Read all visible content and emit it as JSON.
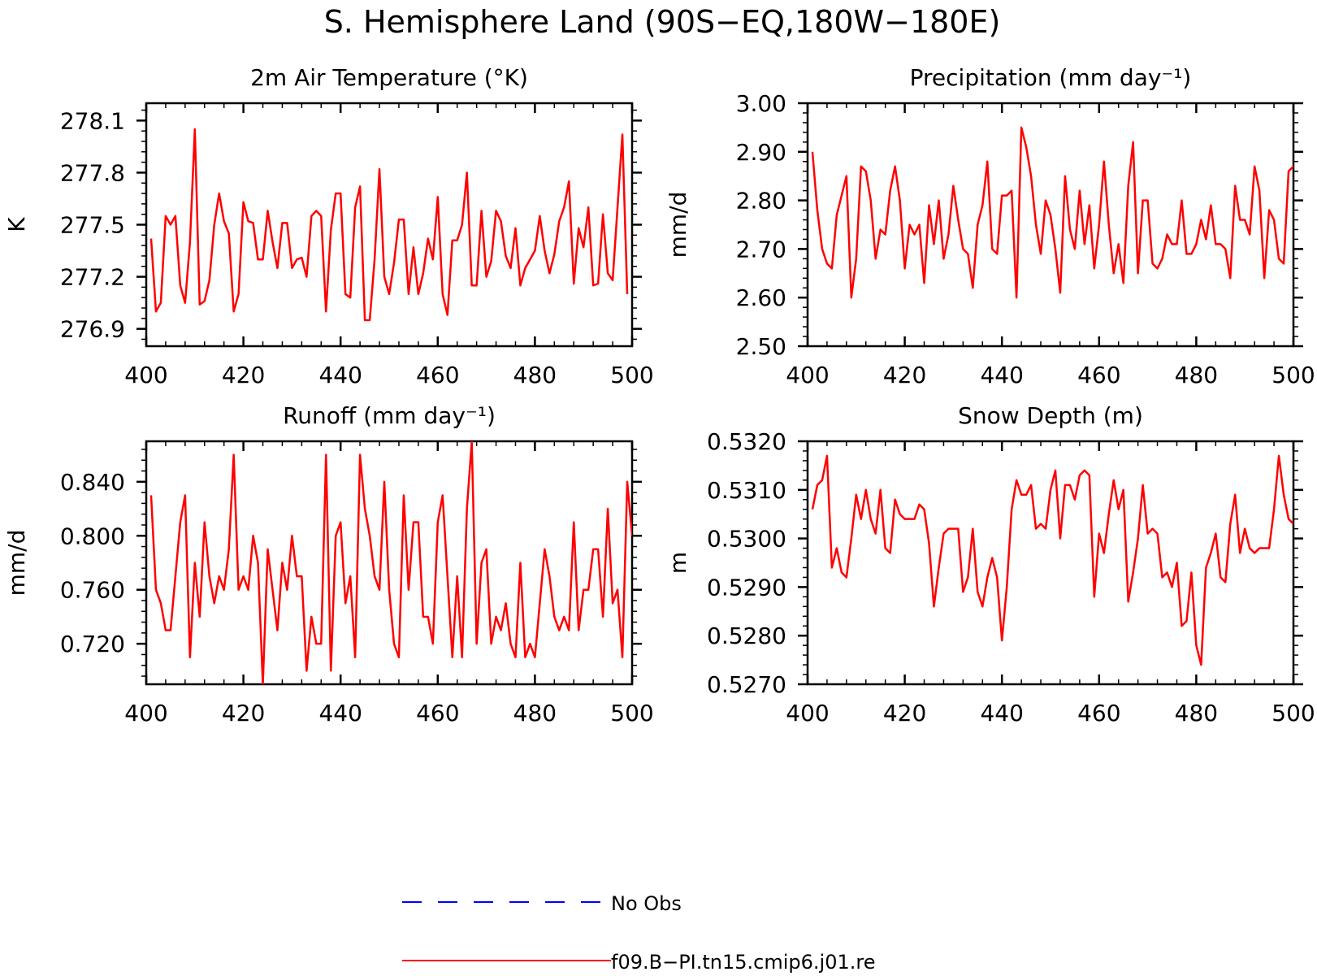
{
  "title": "S. Hemisphere Land (90S−EQ,180W−180E)",
  "legend": [
    {
      "label": "No Obs",
      "color": "#0000ff",
      "style": "dashed"
    },
    {
      "label": "f09.B−PI.tn15.cmip6.j01.re",
      "color": "#ff0000",
      "style": "solid"
    }
  ],
  "chart_data": [
    {
      "type": "line",
      "title": "2m Air Temperature (°K)",
      "ylabel": "K",
      "xlim": [
        400,
        500
      ],
      "ylim": [
        276.8,
        278.2
      ],
      "xticks": [
        400,
        420,
        440,
        460,
        480,
        500
      ],
      "xtick_labels": [
        "400",
        "420",
        "440",
        "460",
        "480",
        "500"
      ],
      "yticks": [
        276.9,
        277.2,
        277.5,
        277.8,
        278.1
      ],
      "ytick_labels": [
        "276.9",
        "277.2",
        "277.5",
        "277.8",
        "278.1"
      ],
      "series": [
        {
          "name": "f09.B−PI.tn15.cmip6.j01.re",
          "x_start": 401,
          "values": [
            277.42,
            277.0,
            277.05,
            277.55,
            277.5,
            277.55,
            277.15,
            277.05,
            277.4,
            278.05,
            277.04,
            277.06,
            277.18,
            277.5,
            277.68,
            277.52,
            277.45,
            277.0,
            277.1,
            277.63,
            277.52,
            277.51,
            277.3,
            277.3,
            277.58,
            277.4,
            277.25,
            277.51,
            277.51,
            277.25,
            277.3,
            277.31,
            277.2,
            277.55,
            277.58,
            277.55,
            277.0,
            277.47,
            277.68,
            277.68,
            277.1,
            277.08,
            277.6,
            277.72,
            276.95,
            276.95,
            277.3,
            277.82,
            277.2,
            277.1,
            277.28,
            277.53,
            277.53,
            277.1,
            277.37,
            277.1,
            277.22,
            277.42,
            277.3,
            277.66,
            277.1,
            276.98,
            277.41,
            277.41,
            277.5,
            277.8,
            277.15,
            277.15,
            277.58,
            277.2,
            277.29,
            277.58,
            277.52,
            277.32,
            277.25,
            277.48,
            277.15,
            277.25,
            277.3,
            277.35,
            277.55,
            277.35,
            277.22,
            277.33,
            277.52,
            277.6,
            277.75,
            277.16,
            277.48,
            277.37,
            277.6,
            277.15,
            277.16,
            277.56,
            277.22,
            277.18,
            277.6,
            278.02,
            277.1
          ]
        }
      ]
    },
    {
      "type": "line",
      "title": "Precipitation (mm day⁻¹)",
      "ylabel": "mm/d",
      "xlim": [
        400,
        500
      ],
      "ylim": [
        2.5,
        3.0
      ],
      "xticks": [
        400,
        420,
        440,
        460,
        480,
        500
      ],
      "xtick_labels": [
        "400",
        "420",
        "440",
        "460",
        "480",
        "500"
      ],
      "yticks": [
        2.5,
        2.6,
        2.7,
        2.8,
        2.9,
        3.0
      ],
      "ytick_labels": [
        "2.50",
        "2.60",
        "2.70",
        "2.80",
        "2.90",
        "3.00"
      ],
      "series": [
        {
          "name": "f09.B−PI.tn15.cmip6.j01.re",
          "x_start": 401,
          "values": [
            2.9,
            2.78,
            2.7,
            2.67,
            2.66,
            2.77,
            2.81,
            2.85,
            2.6,
            2.68,
            2.87,
            2.86,
            2.8,
            2.68,
            2.74,
            2.73,
            2.82,
            2.87,
            2.8,
            2.66,
            2.75,
            2.73,
            2.75,
            2.63,
            2.79,
            2.71,
            2.8,
            2.68,
            2.73,
            2.83,
            2.76,
            2.7,
            2.69,
            2.62,
            2.75,
            2.79,
            2.88,
            2.7,
            2.69,
            2.81,
            2.81,
            2.82,
            2.6,
            2.95,
            2.91,
            2.85,
            2.75,
            2.69,
            2.8,
            2.77,
            2.7,
            2.61,
            2.85,
            2.74,
            2.7,
            2.82,
            2.71,
            2.79,
            2.66,
            2.75,
            2.88,
            2.75,
            2.65,
            2.71,
            2.63,
            2.83,
            2.92,
            2.65,
            2.8,
            2.8,
            2.67,
            2.66,
            2.68,
            2.73,
            2.71,
            2.71,
            2.8,
            2.69,
            2.69,
            2.71,
            2.76,
            2.72,
            2.79,
            2.71,
            2.71,
            2.7,
            2.64,
            2.83,
            2.76,
            2.76,
            2.73,
            2.87,
            2.82,
            2.64,
            2.78,
            2.76,
            2.68,
            2.67,
            2.86,
            2.87
          ]
        }
      ]
    },
    {
      "type": "line",
      "title": "Runoff (mm day⁻¹)",
      "ylabel": "mm/d",
      "xlim": [
        400,
        500
      ],
      "ylim": [
        0.69,
        0.87
      ],
      "xticks": [
        400,
        420,
        440,
        460,
        480,
        500
      ],
      "xtick_labels": [
        "400",
        "420",
        "440",
        "460",
        "480",
        "500"
      ],
      "yticks": [
        0.72,
        0.76,
        0.8,
        0.84
      ],
      "ytick_labels": [
        "0.720",
        "0.760",
        "0.800",
        "0.840"
      ],
      "series": [
        {
          "name": "f09.B−PI.tn15.cmip6.j01.re",
          "x_start": 401,
          "values": [
            0.83,
            0.76,
            0.75,
            0.73,
            0.73,
            0.77,
            0.81,
            0.83,
            0.71,
            0.78,
            0.74,
            0.81,
            0.77,
            0.75,
            0.77,
            0.76,
            0.79,
            0.86,
            0.76,
            0.77,
            0.76,
            0.8,
            0.78,
            0.69,
            0.79,
            0.76,
            0.73,
            0.78,
            0.76,
            0.8,
            0.77,
            0.77,
            0.7,
            0.74,
            0.72,
            0.72,
            0.86,
            0.7,
            0.8,
            0.81,
            0.75,
            0.77,
            0.71,
            0.86,
            0.82,
            0.8,
            0.77,
            0.76,
            0.84,
            0.76,
            0.72,
            0.71,
            0.83,
            0.76,
            0.81,
            0.81,
            0.74,
            0.74,
            0.72,
            0.81,
            0.83,
            0.77,
            0.71,
            0.77,
            0.71,
            0.82,
            0.87,
            0.72,
            0.78,
            0.79,
            0.72,
            0.74,
            0.73,
            0.75,
            0.72,
            0.71,
            0.78,
            0.71,
            0.72,
            0.71,
            0.75,
            0.79,
            0.77,
            0.74,
            0.73,
            0.74,
            0.73,
            0.81,
            0.73,
            0.76,
            0.76,
            0.79,
            0.79,
            0.74,
            0.82,
            0.75,
            0.76,
            0.71,
            0.84,
            0.8
          ]
        }
      ]
    },
    {
      "type": "line",
      "title": "Snow Depth (m)",
      "ylabel": "m",
      "xlim": [
        400,
        500
      ],
      "ylim": [
        0.527,
        0.532
      ],
      "xticks": [
        400,
        420,
        440,
        460,
        480,
        500
      ],
      "xtick_labels": [
        "400",
        "420",
        "440",
        "460",
        "480",
        "500"
      ],
      "yticks": [
        0.527,
        0.528,
        0.529,
        0.53,
        0.531,
        0.532
      ],
      "ytick_labels": [
        "0.5270",
        "0.5280",
        "0.5290",
        "0.5300",
        "0.5310",
        "0.5320"
      ],
      "series": [
        {
          "name": "f09.B−PI.tn15.cmip6.j01.re",
          "x_start": 401,
          "values": [
            0.5306,
            0.5311,
            0.5312,
            0.5317,
            0.5294,
            0.5298,
            0.5293,
            0.5292,
            0.53,
            0.5309,
            0.5304,
            0.531,
            0.5304,
            0.5301,
            0.531,
            0.5298,
            0.5297,
            0.5308,
            0.5305,
            0.5304,
            0.5304,
            0.5304,
            0.5307,
            0.5306,
            0.5299,
            0.5286,
            0.5294,
            0.5301,
            0.5302,
            0.5302,
            0.5302,
            0.5289,
            0.5292,
            0.5302,
            0.5289,
            0.5286,
            0.5292,
            0.5296,
            0.5292,
            0.5279,
            0.529,
            0.5306,
            0.5312,
            0.5309,
            0.5309,
            0.5311,
            0.5302,
            0.5303,
            0.5302,
            0.531,
            0.5314,
            0.53,
            0.5311,
            0.5311,
            0.5308,
            0.5313,
            0.5314,
            0.5313,
            0.5288,
            0.5301,
            0.5297,
            0.5305,
            0.5312,
            0.5306,
            0.531,
            0.5287,
            0.5293,
            0.53,
            0.5311,
            0.5301,
            0.5302,
            0.5301,
            0.5292,
            0.5293,
            0.529,
            0.5295,
            0.5282,
            0.5283,
            0.5293,
            0.5278,
            0.5274,
            0.5294,
            0.5297,
            0.5301,
            0.5292,
            0.5291,
            0.5303,
            0.5309,
            0.5297,
            0.5302,
            0.5298,
            0.5297,
            0.5298,
            0.5298,
            0.5298,
            0.5306,
            0.5317,
            0.5309,
            0.5304,
            0.5303
          ]
        }
      ]
    }
  ]
}
